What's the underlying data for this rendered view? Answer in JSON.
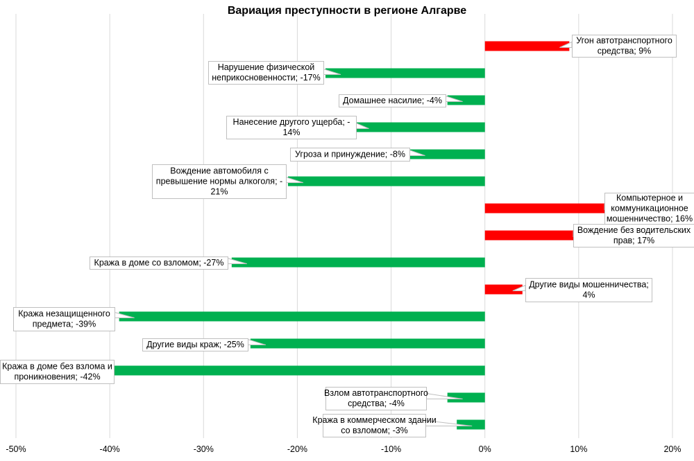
{
  "chart_data": {
    "type": "bar",
    "orientation": "horizontal",
    "title": "Вариация преступности в регионе Алгарве",
    "xlabel": "",
    "ylabel": "",
    "xlim": [
      -50,
      20
    ],
    "xticks": [
      "-50%",
      "-40%",
      "-30%",
      "-20%",
      "-10%",
      "0%",
      "10%",
      "20%"
    ],
    "grid": "vertical",
    "colors": {
      "positive": "#ff0000",
      "negative": "#00b050",
      "grid": "#d9d9d9"
    },
    "categories": [
      "Угон автотранспортного средства",
      "Нарушение физической неприкосновенности",
      "Домашнее насилие",
      "Нанесение другого ущерба",
      "Угроза и принуждение",
      "Вождение автомобиля с превышение нормы алкоголя",
      "Компьютерное и коммуникационное мошенничество",
      "Вождение без водительских прав",
      "Кража в доме со взломом",
      "Другие виды мошенничества",
      "Кража незащищенного предмета",
      "Другие виды краж",
      "Кража в доме без взлома и проникновения",
      "Взлом автотранспортного средства",
      "Кража в коммерческом здании со взломом"
    ],
    "values": [
      9,
      -17,
      -4,
      -14,
      -8,
      -21,
      16,
      17,
      -27,
      4,
      -39,
      -25,
      -42,
      -4,
      -3
    ],
    "data_labels": [
      [
        "Угон автотранспортного",
        "средства; 9%"
      ],
      [
        "Нарушение физической",
        "неприкосновенности; -17%"
      ],
      [
        "Домашнее насилие; -4%"
      ],
      [
        "Нанесение другого ущерба; -",
        "14%"
      ],
      [
        "Угроза и принуждение; -8%"
      ],
      [
        "Вождение автомобиля с",
        "превышение нормы алкоголя; -",
        "21%"
      ],
      [
        "Компьютерное и",
        "коммуникационное",
        "мошенничество; 16%"
      ],
      [
        "Вождение без  водительских",
        "прав; 17%"
      ],
      [
        "Кража в доме со взломом; -27%"
      ],
      [
        "Другие виды мошенничества;",
        "4%"
      ],
      [
        "Кража незащищенного",
        "предмета; -39%"
      ],
      [
        "Другие виды краж; -25%"
      ],
      [
        "Кража в доме без взлома и",
        "проникновения; -42%"
      ],
      [
        "Взлом автотранспортного",
        "средства; -4%"
      ],
      [
        "Кража в коммерческом здании",
        "со взломом; -3%"
      ]
    ]
  }
}
